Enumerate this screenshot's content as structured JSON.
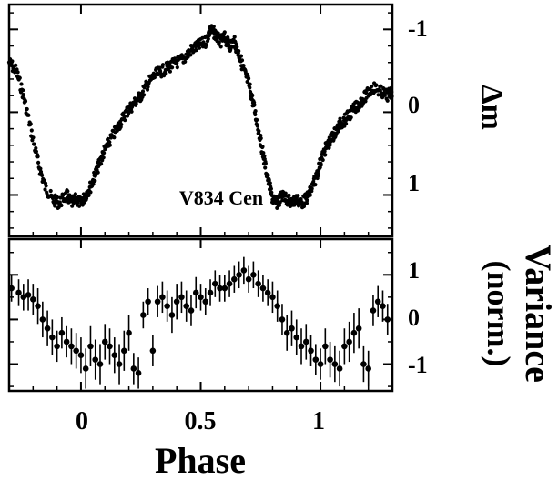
{
  "chart_data": [
    {
      "type": "scatter",
      "panel": "top",
      "title": "",
      "annotation": "V834 Cen",
      "xlabel": "Phase",
      "ylabel": "Δm",
      "xlim": [
        -0.3,
        1.3
      ],
      "ylim_inverted": [
        1.5,
        -1.3
      ],
      "x_ticks": [
        "0",
        "0.5",
        "1"
      ],
      "y_ticks": [
        "-1",
        "0",
        "1"
      ],
      "series": [
        {
          "x": [
            -0.3,
            -0.27,
            -0.24,
            -0.21,
            -0.18,
            -0.15,
            -0.12,
            -0.09,
            -0.06,
            -0.04,
            -0.02,
            0.0,
            0.02,
            0.04,
            0.06,
            0.08,
            0.1,
            0.13,
            0.16,
            0.19,
            0.22,
            0.25,
            0.28,
            0.31,
            0.34,
            0.37,
            0.4,
            0.43,
            0.46,
            0.49,
            0.52,
            0.54,
            0.56,
            0.58,
            0.6,
            0.62,
            0.64,
            0.66,
            0.68,
            0.7,
            0.72,
            0.74,
            0.76,
            0.78,
            0.8,
            0.82,
            0.84,
            0.86,
            0.88,
            0.9,
            0.92,
            0.94,
            0.96,
            0.98,
            1.0,
            1.02,
            1.04,
            1.06,
            1.08,
            1.1,
            1.13,
            1.16,
            1.19,
            1.22,
            1.25,
            1.28,
            1.3
          ],
          "y": [
            -0.6,
            -0.5,
            -0.2,
            0.2,
            0.6,
            0.9,
            1.05,
            1.1,
            1.0,
            1.1,
            1.05,
            1.1,
            1.0,
            0.9,
            0.75,
            0.6,
            0.45,
            0.3,
            0.15,
            0.0,
            -0.1,
            -0.2,
            -0.35,
            -0.45,
            -0.5,
            -0.55,
            -0.6,
            -0.65,
            -0.75,
            -0.8,
            -0.85,
            -1.0,
            -0.95,
            -0.85,
            -0.9,
            -0.8,
            -0.85,
            -0.7,
            -0.5,
            -0.35,
            -0.1,
            0.2,
            0.5,
            0.8,
            1.05,
            1.1,
            1.0,
            1.05,
            1.1,
            1.05,
            1.1,
            1.05,
            0.95,
            0.8,
            0.6,
            0.45,
            0.35,
            0.25,
            0.15,
            0.1,
            0.0,
            -0.1,
            -0.2,
            -0.3,
            -0.25,
            -0.2,
            -0.25
          ]
        }
      ]
    },
    {
      "type": "scatter",
      "panel": "bottom",
      "xlabel": "Phase",
      "ylabel": "Variance (norm.)",
      "xlim": [
        -0.3,
        1.3
      ],
      "ylim": [
        -1.6,
        1.8
      ],
      "x_ticks": [
        "0",
        "0.5",
        "1"
      ],
      "y_ticks": [
        "1",
        "0",
        "-1"
      ],
      "series": [
        {
          "x": [
            -0.29,
            -0.26,
            -0.24,
            -0.22,
            -0.2,
            -0.18,
            -0.16,
            -0.14,
            -0.12,
            -0.1,
            -0.08,
            -0.06,
            -0.04,
            -0.02,
            0.0,
            0.02,
            0.04,
            0.06,
            0.08,
            0.1,
            0.12,
            0.14,
            0.16,
            0.18,
            0.2,
            0.22,
            0.24,
            0.26,
            0.28,
            0.3,
            0.32,
            0.34,
            0.36,
            0.38,
            0.4,
            0.42,
            0.44,
            0.46,
            0.48,
            0.5,
            0.52,
            0.54,
            0.56,
            0.58,
            0.6,
            0.62,
            0.64,
            0.66,
            0.68,
            0.7,
            0.72,
            0.74,
            0.76,
            0.78,
            0.8,
            0.82,
            0.84,
            0.86,
            0.88,
            0.9,
            0.92,
            0.94,
            0.96,
            0.98,
            1.0,
            1.02,
            1.04,
            1.06,
            1.08,
            1.1,
            1.12,
            1.14,
            1.16,
            1.18,
            1.2,
            1.22,
            1.24,
            1.26,
            1.28
          ],
          "y": [
            0.7,
            0.6,
            0.5,
            0.55,
            0.45,
            0.3,
            0.0,
            -0.2,
            -0.4,
            -0.6,
            -0.3,
            -0.5,
            -0.6,
            -0.7,
            -0.8,
            -1.1,
            -0.6,
            -0.9,
            -1.0,
            -0.5,
            -0.6,
            -0.8,
            -1.0,
            -0.7,
            -0.3,
            -1.1,
            -1.2,
            0.1,
            0.4,
            -0.7,
            0.4,
            0.5,
            0.3,
            0.1,
            0.4,
            0.5,
            0.3,
            0.2,
            0.6,
            0.5,
            0.4,
            0.6,
            0.8,
            0.7,
            0.7,
            0.8,
            0.9,
            1.0,
            1.1,
            0.9,
            1.0,
            0.8,
            0.7,
            0.6,
            0.5,
            0.3,
            0.0,
            -0.3,
            -0.2,
            -0.4,
            -0.6,
            -0.5,
            -0.7,
            -0.9,
            -1.0,
            -0.6,
            -0.9,
            -1.0,
            -1.1,
            -0.6,
            -0.5,
            -0.3,
            -0.2,
            -1.0,
            -1.1,
            0.2,
            0.4,
            0.3,
            0.0
          ],
          "errors": [
            0.3,
            0.3,
            0.3,
            0.35,
            0.35,
            0.4,
            0.4,
            0.4,
            0.4,
            0.35,
            0.35,
            0.35,
            0.4,
            0.4,
            0.4,
            0.45,
            0.45,
            0.45,
            0.45,
            0.4,
            0.4,
            0.4,
            0.45,
            0.45,
            0.4,
            0.35,
            0.35,
            0.3,
            0.3,
            0.35,
            0.35,
            0.35,
            0.35,
            0.4,
            0.4,
            0.35,
            0.35,
            0.35,
            0.35,
            0.3,
            0.3,
            0.3,
            0.3,
            0.3,
            0.3,
            0.3,
            0.3,
            0.3,
            0.3,
            0.3,
            0.3,
            0.3,
            0.3,
            0.3,
            0.35,
            0.35,
            0.35,
            0.4,
            0.4,
            0.4,
            0.4,
            0.4,
            0.35,
            0.35,
            0.35,
            0.4,
            0.4,
            0.4,
            0.4,
            0.4,
            0.45,
            0.45,
            0.45,
            0.4,
            0.4,
            0.35,
            0.35,
            0.35,
            0.35
          ]
        }
      ]
    }
  ],
  "labels": {
    "annotation": "V834 Cen",
    "xlabel": "Phase",
    "top_ylabel": "Δm",
    "bottom_ylabel_line1": "Variance",
    "bottom_ylabel_line2": "(norm.)",
    "top_yticks": [
      "-1",
      "0",
      "1"
    ],
    "bottom_yticks": [
      "1",
      "0",
      "-1"
    ],
    "xticks": [
      "0",
      "0.5",
      "1"
    ]
  }
}
